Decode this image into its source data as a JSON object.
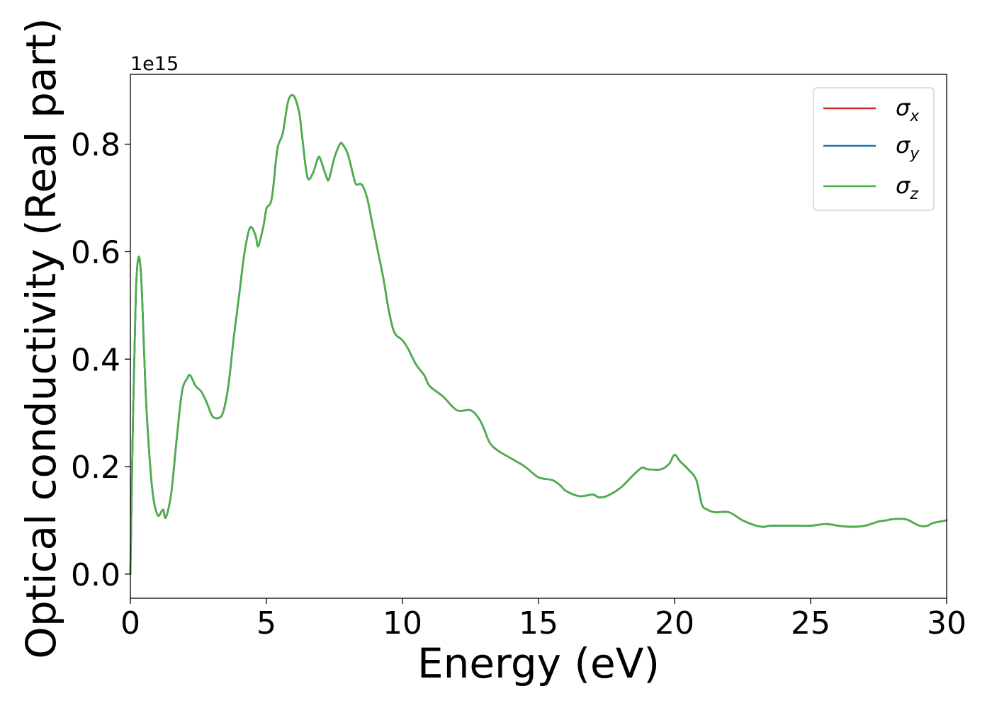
{
  "chart_data": {
    "type": "line",
    "xlabel": "Energy (eV)",
    "ylabel": "Optical conductivity (Real part)",
    "offset_text": "1e15",
    "xlim": [
      0,
      30
    ],
    "ylim": [
      -0.045,
      0.93
    ],
    "xticks": [
      0,
      5,
      10,
      15,
      20,
      25,
      30
    ],
    "xtick_labels": [
      "0",
      "5",
      "10",
      "15",
      "20",
      "25",
      "30"
    ],
    "yticks": [
      0.0,
      0.2,
      0.4,
      0.6,
      0.8
    ],
    "ytick_labels": [
      "0.0",
      "0.2",
      "0.4",
      "0.6",
      "0.8"
    ],
    "grid": false,
    "legend_position": "top-right",
    "y_scale_factor": 1000000000000000.0,
    "x": [
      0,
      0.1,
      0.2,
      0.3,
      0.4,
      0.5,
      0.6,
      0.8,
      1.0,
      1.2,
      1.3,
      1.5,
      1.7,
      1.9,
      2.1,
      2.2,
      2.4,
      2.6,
      2.8,
      3.0,
      3.2,
      3.4,
      3.6,
      3.8,
      4.0,
      4.2,
      4.4,
      4.6,
      4.7,
      4.9,
      5.0,
      5.2,
      5.4,
      5.6,
      5.8,
      6.0,
      6.2,
      6.3,
      6.5,
      6.7,
      6.9,
      7.0,
      7.2,
      7.3,
      7.5,
      7.7,
      7.8,
      8.0,
      8.2,
      8.3,
      8.5,
      8.7,
      8.9,
      9.1,
      9.3,
      9.5,
      9.7,
      10.0,
      10.2,
      10.5,
      10.8,
      11.0,
      11.5,
      12.0,
      12.5,
      12.8,
      13.0,
      13.2,
      13.5,
      14.0,
      14.5,
      15.0,
      15.5,
      15.8,
      16.0,
      16.5,
      17.0,
      17.2,
      17.5,
      18.0,
      18.5,
      18.8,
      19.0,
      19.5,
      19.8,
      20.0,
      20.2,
      20.5,
      20.8,
      21.0,
      21.2,
      21.5,
      22.0,
      22.5,
      23.0,
      23.3,
      23.5,
      24.0,
      24.5,
      25.0,
      25.5,
      25.8,
      26.0,
      26.5,
      27.0,
      27.5,
      27.8,
      28.0,
      28.5,
      29.0,
      29.3,
      29.5,
      30.0
    ],
    "series": [
      {
        "name": "σ_x",
        "label_base": "σ",
        "label_sub": "x",
        "color": "#d62728",
        "values": [
          0.0,
          0.3,
          0.52,
          0.59,
          0.55,
          0.42,
          0.3,
          0.16,
          0.11,
          0.12,
          0.105,
          0.15,
          0.25,
          0.34,
          0.365,
          0.37,
          0.35,
          0.34,
          0.32,
          0.295,
          0.29,
          0.3,
          0.35,
          0.44,
          0.52,
          0.6,
          0.645,
          0.63,
          0.61,
          0.65,
          0.68,
          0.7,
          0.79,
          0.82,
          0.88,
          0.89,
          0.86,
          0.82,
          0.74,
          0.745,
          0.775,
          0.77,
          0.74,
          0.735,
          0.775,
          0.8,
          0.8,
          0.78,
          0.74,
          0.725,
          0.725,
          0.7,
          0.65,
          0.6,
          0.55,
          0.49,
          0.45,
          0.435,
          0.42,
          0.39,
          0.37,
          0.35,
          0.33,
          0.305,
          0.305,
          0.29,
          0.27,
          0.245,
          0.23,
          0.215,
          0.2,
          0.18,
          0.175,
          0.165,
          0.155,
          0.145,
          0.148,
          0.143,
          0.145,
          0.16,
          0.185,
          0.198,
          0.195,
          0.195,
          0.205,
          0.222,
          0.21,
          0.195,
          0.175,
          0.13,
          0.12,
          0.115,
          0.115,
          0.1,
          0.09,
          0.088,
          0.09,
          0.09,
          0.09,
          0.09,
          0.093,
          0.092,
          0.09,
          0.088,
          0.09,
          0.098,
          0.1,
          0.102,
          0.102,
          0.09,
          0.09,
          0.095,
          0.1
        ]
      },
      {
        "name": "σ_y",
        "label_base": "σ",
        "label_sub": "y",
        "color": "#1f77b4",
        "values": [
          0.0,
          0.3,
          0.52,
          0.59,
          0.55,
          0.42,
          0.3,
          0.16,
          0.11,
          0.12,
          0.105,
          0.15,
          0.25,
          0.34,
          0.365,
          0.37,
          0.35,
          0.34,
          0.32,
          0.295,
          0.29,
          0.3,
          0.35,
          0.44,
          0.52,
          0.6,
          0.645,
          0.63,
          0.61,
          0.65,
          0.68,
          0.7,
          0.79,
          0.82,
          0.88,
          0.89,
          0.86,
          0.82,
          0.74,
          0.745,
          0.775,
          0.77,
          0.74,
          0.735,
          0.775,
          0.8,
          0.8,
          0.78,
          0.74,
          0.725,
          0.725,
          0.7,
          0.65,
          0.6,
          0.55,
          0.49,
          0.45,
          0.435,
          0.42,
          0.39,
          0.37,
          0.35,
          0.33,
          0.305,
          0.305,
          0.29,
          0.27,
          0.245,
          0.23,
          0.215,
          0.2,
          0.18,
          0.175,
          0.165,
          0.155,
          0.145,
          0.148,
          0.143,
          0.145,
          0.16,
          0.185,
          0.198,
          0.195,
          0.195,
          0.205,
          0.222,
          0.21,
          0.195,
          0.175,
          0.13,
          0.12,
          0.115,
          0.115,
          0.1,
          0.09,
          0.088,
          0.09,
          0.09,
          0.09,
          0.09,
          0.093,
          0.092,
          0.09,
          0.088,
          0.09,
          0.098,
          0.1,
          0.102,
          0.102,
          0.09,
          0.09,
          0.095,
          0.1
        ]
      },
      {
        "name": "σ_z",
        "label_base": "σ",
        "label_sub": "z",
        "color": "#4daf4a",
        "values": [
          0.0,
          0.3,
          0.52,
          0.59,
          0.55,
          0.42,
          0.3,
          0.16,
          0.11,
          0.12,
          0.105,
          0.15,
          0.25,
          0.34,
          0.365,
          0.37,
          0.35,
          0.34,
          0.32,
          0.295,
          0.29,
          0.3,
          0.35,
          0.44,
          0.52,
          0.6,
          0.645,
          0.63,
          0.61,
          0.65,
          0.68,
          0.7,
          0.79,
          0.82,
          0.88,
          0.89,
          0.86,
          0.82,
          0.74,
          0.745,
          0.775,
          0.77,
          0.74,
          0.735,
          0.775,
          0.8,
          0.8,
          0.78,
          0.74,
          0.725,
          0.725,
          0.7,
          0.65,
          0.6,
          0.55,
          0.49,
          0.45,
          0.435,
          0.42,
          0.39,
          0.37,
          0.35,
          0.33,
          0.305,
          0.305,
          0.29,
          0.27,
          0.245,
          0.23,
          0.215,
          0.2,
          0.18,
          0.175,
          0.165,
          0.155,
          0.145,
          0.148,
          0.143,
          0.145,
          0.16,
          0.185,
          0.198,
          0.195,
          0.195,
          0.205,
          0.222,
          0.21,
          0.195,
          0.175,
          0.13,
          0.12,
          0.115,
          0.115,
          0.1,
          0.09,
          0.088,
          0.09,
          0.09,
          0.09,
          0.09,
          0.093,
          0.092,
          0.09,
          0.088,
          0.09,
          0.098,
          0.1,
          0.102,
          0.102,
          0.09,
          0.09,
          0.095,
          0.1
        ]
      }
    ]
  }
}
